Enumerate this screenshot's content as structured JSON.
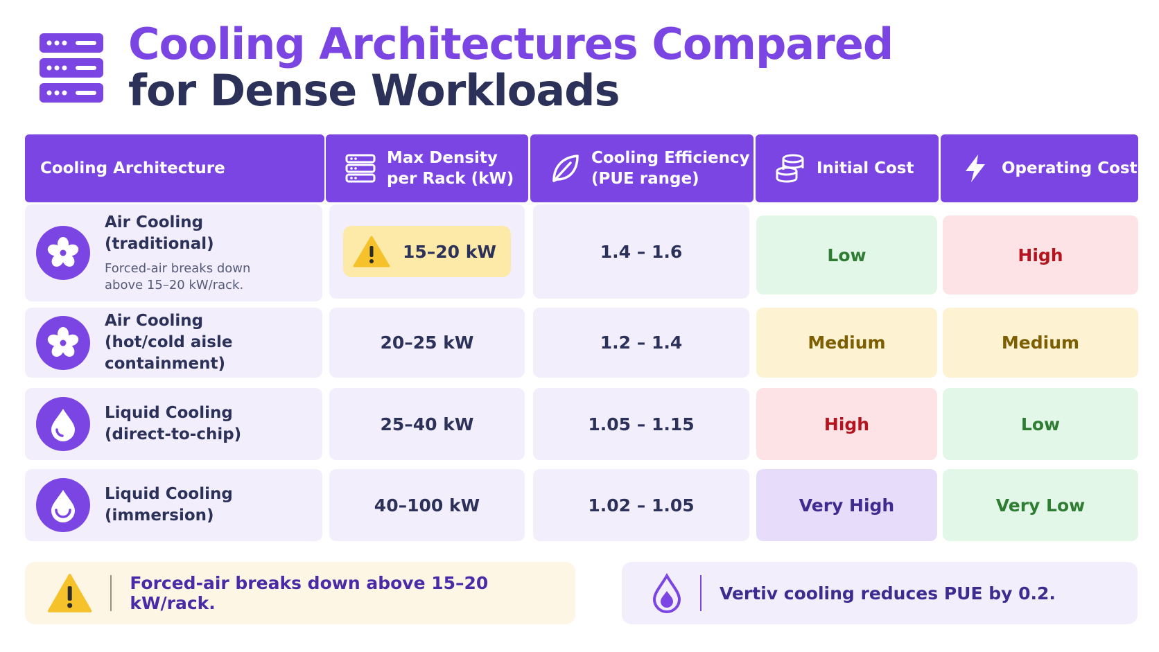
{
  "title": {
    "line1": "Cooling Architectures Compared",
    "line2": "for Dense Workloads"
  },
  "header": {
    "architecture": "Cooling Architecture",
    "density": "Max Density\nper Rack (kW)",
    "efficiency": "Cooling Efficiency\n(PUE range)",
    "initial_cost": "Initial Cost",
    "operating_cost": "Operating Cost"
  },
  "rows": [
    {
      "name": "Air Cooling\n(traditional)",
      "note": "Forced-air breaks down\nabove 15–20 kW/rack.",
      "icon": "fan-icon",
      "density": "15–20 kW",
      "efficiency": "1.4 – 1.6",
      "initial_cost": "Low",
      "operating_cost": "High"
    },
    {
      "name": "Air Cooling\n(hot/cold aisle containment)",
      "note": "",
      "icon": "fan-icon",
      "density": "20–25 kW",
      "efficiency": "1.2 – 1.4",
      "initial_cost": "Medium",
      "operating_cost": "Medium"
    },
    {
      "name": "Liquid Cooling\n(direct-to-chip)",
      "note": "",
      "icon": "water-drop-icon",
      "density": "25–40 kW",
      "efficiency": "1.05 – 1.15",
      "initial_cost": "High",
      "operating_cost": "Low"
    },
    {
      "name": "Liquid Cooling\n(immersion)",
      "note": "",
      "icon": "water-drop-icon",
      "density": "40–100 kW",
      "efficiency": "1.02 – 1.05",
      "initial_cost": "Very High",
      "operating_cost": "Very Low"
    }
  ],
  "callouts": {
    "warning": "Forced-air breaks down above 15–20 kW/rack.",
    "info": "Vertiv cooling reduces PUE by 0.2."
  },
  "colors": {
    "accent": "#7b45e3",
    "low": "#2e7d32",
    "high": "#b3141e",
    "medium": "#7d5e00",
    "very_high": "#3d2b8f",
    "warning": "#f6c22b"
  }
}
